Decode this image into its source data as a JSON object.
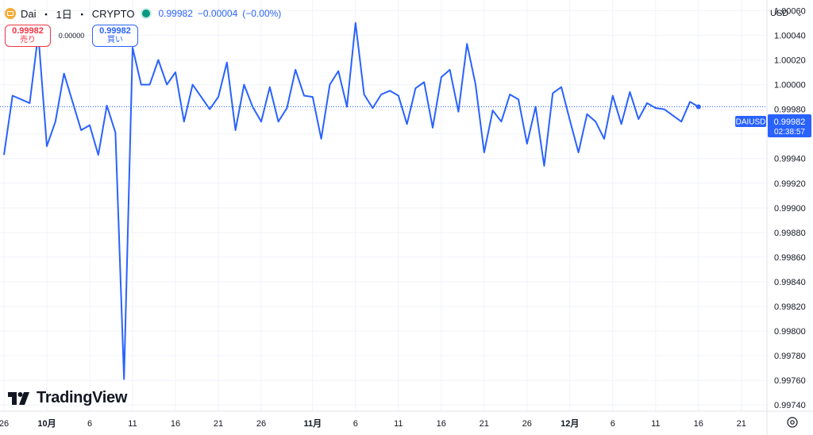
{
  "header": {
    "symbol": "Dai",
    "sep1": "・",
    "interval": "1日",
    "sep2": "・",
    "exchange": "CRYPTO",
    "last_price": "0.99982",
    "change": "−0.00004",
    "change_pct": "(−0.00%)"
  },
  "trade": {
    "sell_price": "0.99982",
    "sell_label": "売り",
    "spread": "0.00000",
    "buy_price": "0.99982",
    "buy_label": "買い"
  },
  "currency": {
    "value": "USD"
  },
  "logo": {
    "text": "TradingView"
  },
  "price_tag": {
    "symbol": "DAIUSD",
    "price": "0.99982",
    "countdown": "02:38:57"
  },
  "colors": {
    "line": "#2962ff",
    "tag": "#2962ff",
    "sell": "#f23645",
    "buy": "#2962ff",
    "grid": "#f0f3fa",
    "market_open": "#089981"
  },
  "chart_data": {
    "type": "line",
    "title": "Dai・1日・CRYPTO",
    "series_name": "DAIUSD",
    "ylim": [
      0.99735,
      1.00068
    ],
    "y_ticks": [
      1.0006,
      1.0004,
      1.0002,
      1.0,
      0.9998,
      0.9996,
      0.9994,
      0.9992,
      0.999,
      0.9988,
      0.9986,
      0.9984,
      0.9982,
      0.998,
      0.9978,
      0.9976,
      0.9974
    ],
    "y_tick_labels": [
      "1.00060",
      "1.00040",
      "1.00020",
      "1.00000",
      "0.99980",
      "0.99960",
      "0.99940",
      "0.99920",
      "0.99900",
      "0.99880",
      "0.99860",
      "0.99840",
      "0.99820",
      "0.99800",
      "0.99780",
      "0.99760",
      "0.99740"
    ],
    "x_ticks": [
      {
        "i": 0,
        "label": "26",
        "bold": false
      },
      {
        "i": 5,
        "label": "10月",
        "bold": true
      },
      {
        "i": 10,
        "label": "6",
        "bold": false
      },
      {
        "i": 15,
        "label": "11",
        "bold": false
      },
      {
        "i": 20,
        "label": "16",
        "bold": false
      },
      {
        "i": 25,
        "label": "21",
        "bold": false
      },
      {
        "i": 30,
        "label": "26",
        "bold": false
      },
      {
        "i": 36,
        "label": "11月",
        "bold": true
      },
      {
        "i": 41,
        "label": "6",
        "bold": false
      },
      {
        "i": 46,
        "label": "11",
        "bold": false
      },
      {
        "i": 51,
        "label": "16",
        "bold": false
      },
      {
        "i": 56,
        "label": "21",
        "bold": false
      },
      {
        "i": 61,
        "label": "26",
        "bold": false
      },
      {
        "i": 66,
        "label": "12月",
        "bold": true
      },
      {
        "i": 71,
        "label": "6",
        "bold": false
      },
      {
        "i": 76,
        "label": "11",
        "bold": false
      },
      {
        "i": 81,
        "label": "16",
        "bold": false
      },
      {
        "i": 86,
        "label": "21",
        "bold": false
      }
    ],
    "values": [
      0.99943,
      0.99991,
      0.99988,
      0.99985,
      1.00041,
      0.9995,
      0.9997,
      1.00009,
      0.99986,
      0.99963,
      0.99967,
      0.99943,
      0.99983,
      0.99961,
      0.99761,
      1.0003,
      1.0,
      1.0,
      1.0002,
      1.0,
      1.0001,
      0.9997,
      1.0,
      0.9999,
      0.9998,
      0.9999,
      1.00018,
      0.99963,
      1.0,
      0.99982,
      0.9997,
      0.99998,
      0.9997,
      0.99981,
      1.00012,
      0.99991,
      0.9999,
      0.99956,
      1.0,
      1.00011,
      0.99982,
      1.0005,
      0.99992,
      0.99981,
      0.99992,
      0.99995,
      0.99991,
      0.99968,
      0.99997,
      1.00002,
      0.99965,
      1.00006,
      1.00012,
      0.99978,
      1.00033,
      1.0,
      0.99945,
      0.99979,
      0.9997,
      0.99992,
      0.99988,
      0.99952,
      0.99982,
      0.99934,
      0.99993,
      0.99998,
      0.99971,
      0.99945,
      0.99976,
      0.9997,
      0.99956,
      0.99991,
      0.99968,
      0.99994,
      0.99972,
      0.99985,
      0.99981,
      0.9998,
      0.99975,
      0.9997,
      0.99986,
      0.99982
    ],
    "last_value": 0.99982,
    "grid": true
  }
}
